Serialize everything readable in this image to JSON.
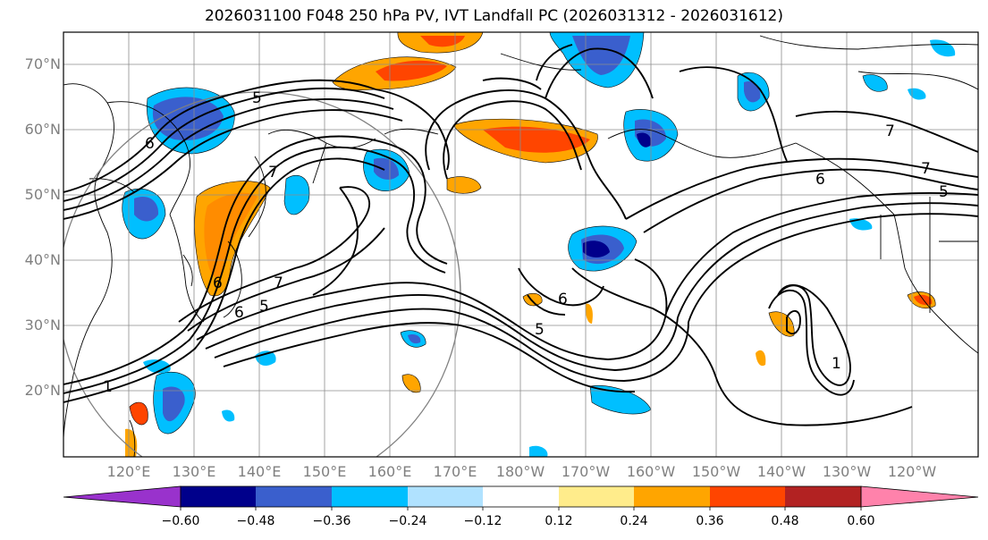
{
  "title": "2026031100 F048 250 hPa PV, IVT Landfall PC (2026031312 - 2026031612)",
  "lat_labels": [
    "70°N",
    "60°N",
    "50°N",
    "40°N",
    "30°N",
    "20°N"
  ],
  "lon_labels": [
    "120°E",
    "130°E",
    "140°E",
    "150°E",
    "160°E",
    "170°E",
    "180°W",
    "170°W",
    "160°W",
    "150°W",
    "140°W",
    "130°W",
    "120°W"
  ],
  "contour_labels": [
    "5",
    "6",
    "7",
    "6",
    "5",
    "6",
    "7",
    "6",
    "5",
    "6",
    "7",
    "7",
    "5",
    "1",
    "1"
  ],
  "colorbar": {
    "ticks": [
      "−0.60",
      "−0.48",
      "−0.36",
      "−0.24",
      "−0.12",
      "0.12",
      "0.24",
      "0.36",
      "0.48",
      "0.60"
    ],
    "colors": [
      "#9932cc",
      "#00008b",
      "#3a5fcd",
      "#00bfff",
      "#b0e2ff",
      "#ffffff",
      "#ffec8b",
      "#ffa500",
      "#ff4500",
      "#b22222",
      "#ff82ab"
    ]
  }
}
